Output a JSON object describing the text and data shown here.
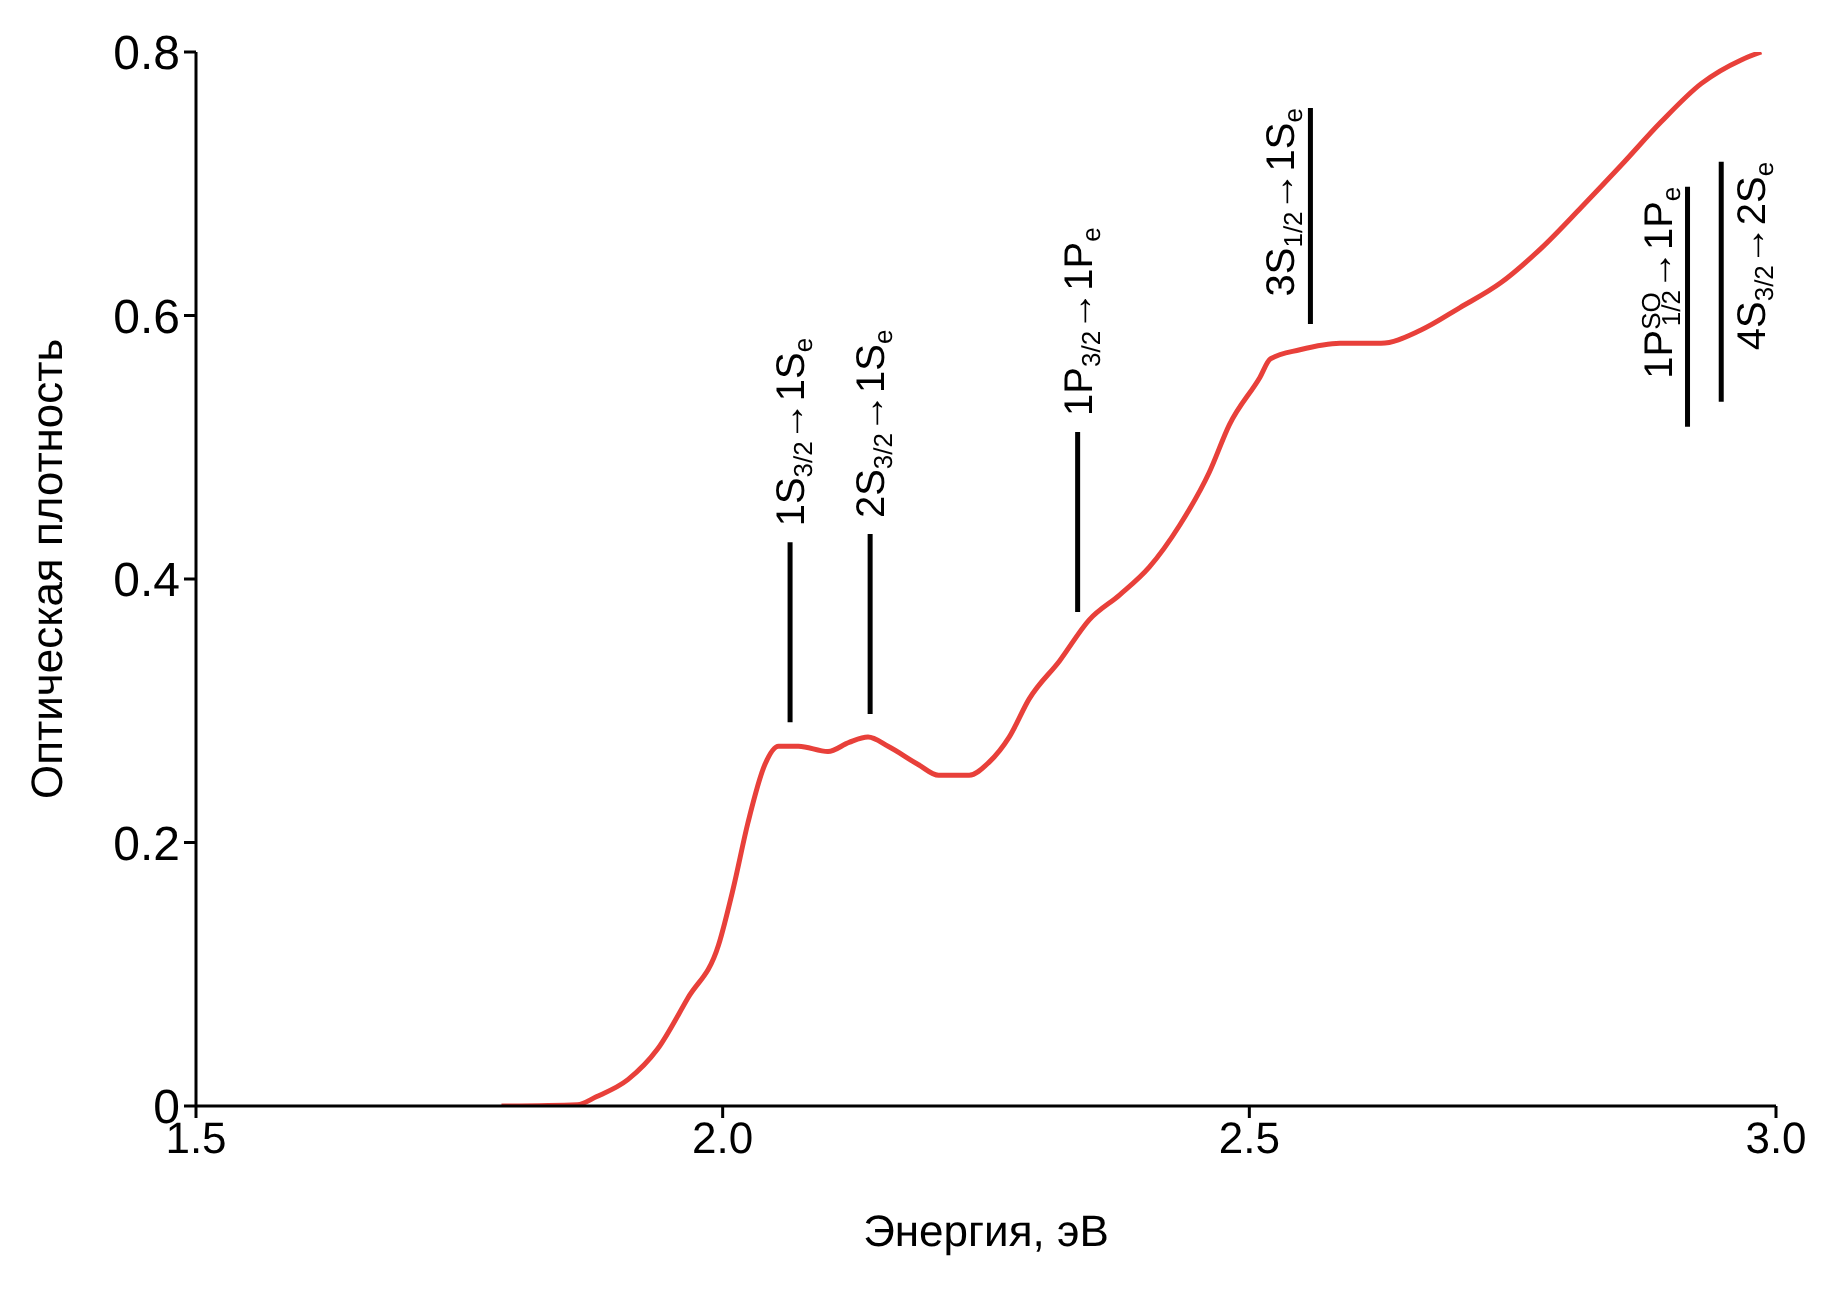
{
  "chart_data": {
    "type": "line",
    "xlabel": "Энергия, эВ",
    "ylabel": "Оптическая плотность",
    "xlim": [
      1.5,
      3.0
    ],
    "xticks": [
      1.5,
      {
        "value": 2,
        "label": "2.0"
      },
      2.5,
      {
        "value": 3,
        "label": "3.0"
      }
    ],
    "ylim": [
      0,
      0.8
    ],
    "yticks": [
      0,
      0.2,
      0.4,
      0.6,
      0.8
    ],
    "grid": false,
    "legend": false,
    "marker": "none",
    "line_style": "solid",
    "x": [
      1.79,
      1.862,
      1.88,
      1.91,
      1.938,
      1.967,
      1.996,
      2.01,
      2.024,
      2.04,
      2.053,
      2.072,
      2.1,
      2.12,
      2.138,
      2.157,
      2.186,
      2.205,
      2.234,
      2.253,
      2.272,
      2.291,
      2.32,
      2.348,
      2.377,
      2.405,
      2.434,
      2.462,
      2.481,
      2.51,
      2.52,
      2.548,
      2.586,
      2.625,
      2.663,
      2.7,
      2.739,
      2.777,
      2.815,
      2.853,
      2.891,
      2.929,
      2.967,
      2.986
    ],
    "series": [
      {
        "color": "#e8403a",
        "values": [
          0,
          0.001,
          0.007,
          0.02,
          0.043,
          0.082,
          0.122,
          0.165,
          0.215,
          0.259,
          0.273,
          0.273,
          0.269,
          0.276,
          0.28,
          0.273,
          0.259,
          0.251,
          0.251,
          0.261,
          0.28,
          0.309,
          0.338,
          0.369,
          0.388,
          0.409,
          0.441,
          0.481,
          0.517,
          0.553,
          0.567,
          0.574,
          0.579,
          0.579,
          0.589,
          0.606,
          0.625,
          0.651,
          0.682,
          0.714,
          0.747,
          0.776,
          0.794,
          0.8
        ]
      }
    ],
    "ref_lines": [
      {
        "axis": "x",
        "value": 2.064,
        "label": "1S$_{3/2}$→1S$_{e}$"
      },
      {
        "axis": "x",
        "value": 2.14,
        "label": "2S$_{3/2}$→1S$_{e}$"
      },
      {
        "axis": "x",
        "value": 2.337,
        "label": "1P$_{3/2}$→1P$_{e}$"
      },
      {
        "axis": "x",
        "value": 2.558,
        "label": "3S$_{1/2}$→1S$_{e}$"
      },
      {
        "axis": "x",
        "value": 2.916,
        "label": "1P$^{SO}$$_{1/2}$→1P$_{e}$"
      },
      {
        "axis": "x",
        "value": 2.948,
        "label": "4S$_{3/2}$→2S$_{e}$"
      }
    ]
  }
}
